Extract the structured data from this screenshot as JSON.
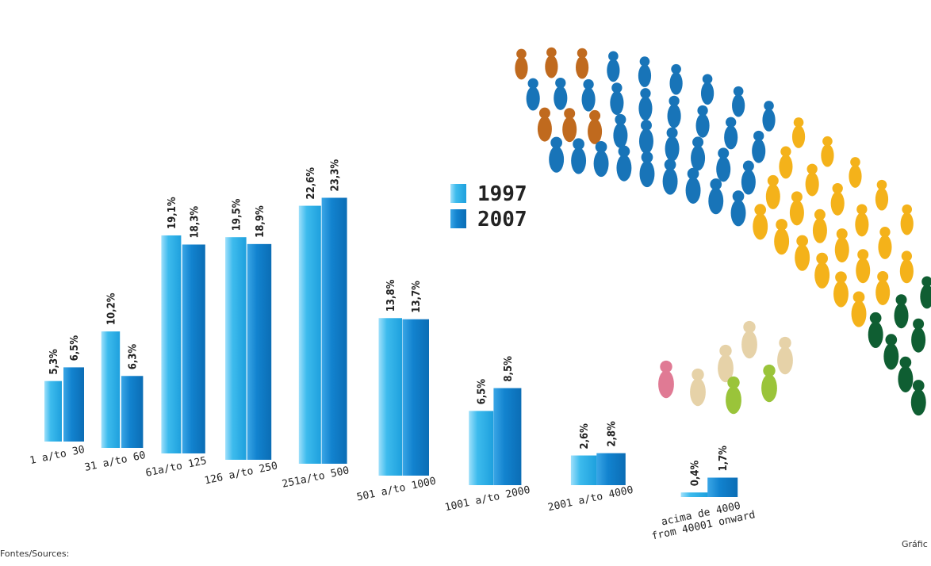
{
  "chart_data": {
    "type": "bar",
    "categories": [
      "1 a/to 30",
      "31 a/to 60",
      "61a/to 125",
      "126 a/to 250",
      "251a/to 500",
      "501 a/to 1000",
      "1001 a/to 2000",
      "2001 a/to 4000",
      "acima de 4000\nfrom 40001 onward"
    ],
    "series": [
      {
        "name": "1997",
        "color": "#3dbbed",
        "values": [
          5.3,
          10.2,
          19.1,
          19.5,
          22.6,
          13.8,
          6.5,
          2.6,
          0.4
        ],
        "value_labels": [
          "5,3%",
          "10,2%",
          "19,1%",
          "19,5%",
          "22,6%",
          "13,8%",
          "6,5%",
          "2,6%",
          "0,4%"
        ]
      },
      {
        "name": "2007",
        "color": "#1283cf",
        "values": [
          6.5,
          6.3,
          18.3,
          18.9,
          23.3,
          13.7,
          8.5,
          2.8,
          1.7
        ],
        "value_labels": [
          "6,5%",
          "6,3%",
          "18,3%",
          "18,9%",
          "23,3%",
          "13,7%",
          "8,5%",
          "2,8%",
          "1,7%"
        ]
      }
    ]
  },
  "source": "Fontes/Sources:",
  "credit": "Gráfic"
}
